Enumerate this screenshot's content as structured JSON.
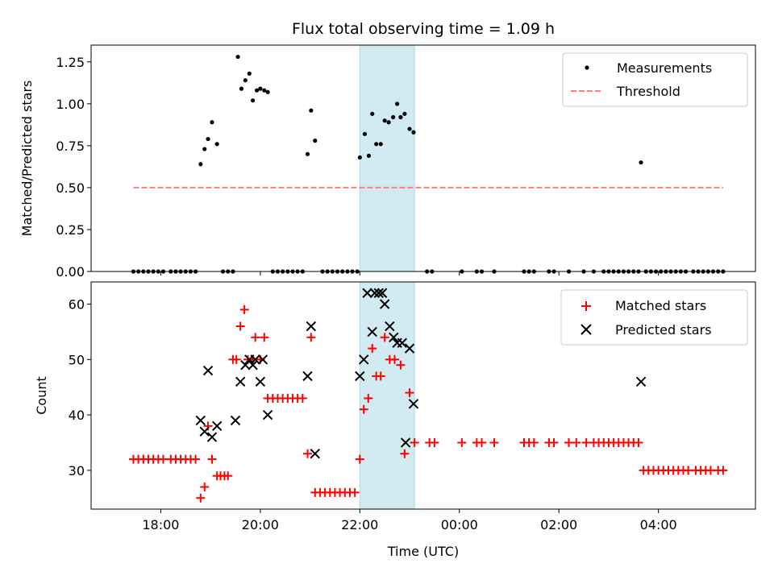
{
  "title": "Flux total observing time = 1.09 h",
  "colors": {
    "measurement": "#000000",
    "threshold": "#ff7f7f",
    "matched": "#ff0000",
    "predicted": "#000000",
    "span": "#add8e6"
  },
  "chart_data": [
    {
      "type": "scatter",
      "ylabel": "Matched/Predicted stars",
      "xlim": [
        16.6,
        29.95
      ],
      "ylim": [
        0,
        1.35
      ],
      "yticks": [
        0.0,
        0.25,
        0.5,
        0.75,
        1.0,
        1.25
      ],
      "ytick_labels": [
        "0.00",
        "0.25",
        "0.50",
        "0.75",
        "1.00",
        "1.25"
      ],
      "highlight_span": [
        22.0,
        23.1
      ],
      "legend": [
        "Measurements",
        "Threshold"
      ],
      "threshold": {
        "name": "Threshold",
        "value": 0.5,
        "x": [
          17.45,
          29.3
        ]
      },
      "series": [
        {
          "name": "Measurements",
          "marker": "dot",
          "points": [
            [
              17.45,
              0
            ],
            [
              17.55,
              0
            ],
            [
              17.65,
              0
            ],
            [
              17.75,
              0
            ],
            [
              17.85,
              0
            ],
            [
              17.95,
              0
            ],
            [
              18.05,
              0
            ],
            [
              18.2,
              0
            ],
            [
              18.3,
              0
            ],
            [
              18.4,
              0
            ],
            [
              18.5,
              0
            ],
            [
              18.6,
              0
            ],
            [
              18.7,
              0
            ],
            [
              18.8,
              0.64
            ],
            [
              18.88,
              0.73
            ],
            [
              18.95,
              0.79
            ],
            [
              19.03,
              0.89
            ],
            [
              19.13,
              0.76
            ],
            [
              19.25,
              0
            ],
            [
              19.35,
              0
            ],
            [
              19.45,
              0
            ],
            [
              19.55,
              1.28
            ],
            [
              19.62,
              1.09
            ],
            [
              19.7,
              1.14
            ],
            [
              19.78,
              1.18
            ],
            [
              19.85,
              1.02
            ],
            [
              19.93,
              1.08
            ],
            [
              20.0,
              1.09
            ],
            [
              20.08,
              1.08
            ],
            [
              20.15,
              1.07
            ],
            [
              20.25,
              0
            ],
            [
              20.35,
              0
            ],
            [
              20.45,
              0
            ],
            [
              20.55,
              0
            ],
            [
              20.65,
              0
            ],
            [
              20.75,
              0
            ],
            [
              20.85,
              0
            ],
            [
              20.95,
              0.7
            ],
            [
              21.02,
              0.96
            ],
            [
              21.1,
              0.78
            ],
            [
              21.25,
              0
            ],
            [
              21.35,
              0
            ],
            [
              21.45,
              0
            ],
            [
              21.55,
              0
            ],
            [
              21.65,
              0
            ],
            [
              21.75,
              0
            ],
            [
              21.85,
              0
            ],
            [
              21.95,
              0
            ],
            [
              22.0,
              0.68
            ],
            [
              22.1,
              0.82
            ],
            [
              22.18,
              0.69
            ],
            [
              22.25,
              0.94
            ],
            [
              22.33,
              0.76
            ],
            [
              22.42,
              0.76
            ],
            [
              22.5,
              0.9
            ],
            [
              22.58,
              0.89
            ],
            [
              22.67,
              0.92
            ],
            [
              22.75,
              1.0
            ],
            [
              22.82,
              0.92
            ],
            [
              22.9,
              0.94
            ],
            [
              23.0,
              0.85
            ],
            [
              23.08,
              0.83
            ],
            [
              23.35,
              0
            ],
            [
              23.45,
              0
            ],
            [
              24.05,
              0
            ],
            [
              24.35,
              0
            ],
            [
              24.45,
              0
            ],
            [
              24.7,
              0
            ],
            [
              25.3,
              0
            ],
            [
              25.4,
              0
            ],
            [
              25.5,
              0
            ],
            [
              25.8,
              0
            ],
            [
              25.9,
              0
            ],
            [
              26.2,
              0
            ],
            [
              26.5,
              0
            ],
            [
              26.7,
              0
            ],
            [
              26.9,
              0
            ],
            [
              27.0,
              0
            ],
            [
              27.1,
              0
            ],
            [
              27.2,
              0
            ],
            [
              27.3,
              0
            ],
            [
              27.4,
              0
            ],
            [
              27.5,
              0
            ],
            [
              27.6,
              0
            ],
            [
              27.65,
              0.65
            ],
            [
              27.75,
              0
            ],
            [
              27.85,
              0
            ],
            [
              27.95,
              0
            ],
            [
              28.05,
              0
            ],
            [
              28.15,
              0
            ],
            [
              28.25,
              0
            ],
            [
              28.35,
              0
            ],
            [
              28.45,
              0
            ],
            [
              28.55,
              0
            ],
            [
              28.7,
              0
            ],
            [
              28.8,
              0
            ],
            [
              28.9,
              0
            ],
            [
              29.0,
              0
            ],
            [
              29.1,
              0
            ],
            [
              29.2,
              0
            ],
            [
              29.3,
              0
            ]
          ]
        }
      ]
    },
    {
      "type": "scatter",
      "ylabel": "Count",
      "xlabel": "Time (UTC)",
      "xlim": [
        16.6,
        29.95
      ],
      "ylim": [
        23,
        64
      ],
      "yticks": [
        30,
        40,
        50,
        60
      ],
      "ytick_labels": [
        "30",
        "40",
        "50",
        "60"
      ],
      "xticks": [
        18,
        20,
        22,
        24,
        26,
        28
      ],
      "xtick_labels": [
        "18:00",
        "20:00",
        "22:00",
        "00:00",
        "02:00",
        "04:00"
      ],
      "highlight_span": [
        22.0,
        23.1
      ],
      "legend": [
        "Matched stars",
        "Predicted stars"
      ],
      "series": [
        {
          "name": "Matched stars",
          "marker": "plus",
          "points": [
            [
              17.45,
              32
            ],
            [
              17.55,
              32
            ],
            [
              17.65,
              32
            ],
            [
              17.75,
              32
            ],
            [
              17.85,
              32
            ],
            [
              17.95,
              32
            ],
            [
              18.05,
              32
            ],
            [
              18.2,
              32
            ],
            [
              18.3,
              32
            ],
            [
              18.4,
              32
            ],
            [
              18.5,
              32
            ],
            [
              18.6,
              32
            ],
            [
              18.7,
              32
            ],
            [
              18.8,
              25
            ],
            [
              18.88,
              27
            ],
            [
              18.95,
              38
            ],
            [
              19.03,
              32
            ],
            [
              19.13,
              29
            ],
            [
              19.2,
              29
            ],
            [
              19.28,
              29
            ],
            [
              19.35,
              29
            ],
            [
              19.45,
              50
            ],
            [
              19.52,
              50
            ],
            [
              19.6,
              56
            ],
            [
              19.68,
              59
            ],
            [
              19.75,
              50
            ],
            [
              19.85,
              50
            ],
            [
              19.9,
              54
            ],
            [
              20.0,
              50
            ],
            [
              20.08,
              54
            ],
            [
              20.15,
              43
            ],
            [
              20.25,
              43
            ],
            [
              20.35,
              43
            ],
            [
              20.45,
              43
            ],
            [
              20.55,
              43
            ],
            [
              20.65,
              43
            ],
            [
              20.75,
              43
            ],
            [
              20.85,
              43
            ],
            [
              20.95,
              33
            ],
            [
              21.02,
              54
            ],
            [
              21.1,
              26
            ],
            [
              21.2,
              26
            ],
            [
              21.3,
              26
            ],
            [
              21.4,
              26
            ],
            [
              21.5,
              26
            ],
            [
              21.6,
              26
            ],
            [
              21.7,
              26
            ],
            [
              21.8,
              26
            ],
            [
              21.9,
              26
            ],
            [
              22.0,
              32
            ],
            [
              22.08,
              41
            ],
            [
              22.17,
              43
            ],
            [
              22.25,
              52
            ],
            [
              22.33,
              47
            ],
            [
              22.42,
              47
            ],
            [
              22.5,
              54
            ],
            [
              22.6,
              50
            ],
            [
              22.7,
              50
            ],
            [
              22.82,
              49
            ],
            [
              22.9,
              33
            ],
            [
              23.0,
              44
            ],
            [
              23.1,
              35
            ],
            [
              23.4,
              35
            ],
            [
              23.5,
              35
            ],
            [
              24.05,
              35
            ],
            [
              24.35,
              35
            ],
            [
              24.45,
              35
            ],
            [
              24.7,
              35
            ],
            [
              25.3,
              35
            ],
            [
              25.4,
              35
            ],
            [
              25.5,
              35
            ],
            [
              25.8,
              35
            ],
            [
              25.9,
              35
            ],
            [
              26.2,
              35
            ],
            [
              26.35,
              35
            ],
            [
              26.55,
              35
            ],
            [
              26.7,
              35
            ],
            [
              26.8,
              35
            ],
            [
              26.9,
              35
            ],
            [
              27.0,
              35
            ],
            [
              27.1,
              35
            ],
            [
              27.2,
              35
            ],
            [
              27.3,
              35
            ],
            [
              27.4,
              35
            ],
            [
              27.5,
              35
            ],
            [
              27.6,
              35
            ],
            [
              27.7,
              30
            ],
            [
              27.8,
              30
            ],
            [
              27.9,
              30
            ],
            [
              28.0,
              30
            ],
            [
              28.1,
              30
            ],
            [
              28.2,
              30
            ],
            [
              28.3,
              30
            ],
            [
              28.4,
              30
            ],
            [
              28.5,
              30
            ],
            [
              28.6,
              30
            ],
            [
              28.75,
              30
            ],
            [
              28.85,
              30
            ],
            [
              28.95,
              30
            ],
            [
              29.05,
              30
            ],
            [
              29.2,
              30
            ],
            [
              29.3,
              30
            ]
          ]
        },
        {
          "name": "Predicted stars",
          "marker": "x",
          "points": [
            [
              18.8,
              39
            ],
            [
              18.88,
              37
            ],
            [
              18.95,
              48
            ],
            [
              19.03,
              36
            ],
            [
              19.13,
              38
            ],
            [
              19.5,
              39
            ],
            [
              19.6,
              46
            ],
            [
              19.7,
              49
            ],
            [
              19.78,
              50
            ],
            [
              19.85,
              49
            ],
            [
              19.9,
              50
            ],
            [
              20.0,
              46
            ],
            [
              20.05,
              50
            ],
            [
              20.15,
              40
            ],
            [
              20.95,
              47
            ],
            [
              21.02,
              56
            ],
            [
              21.1,
              33
            ],
            [
              22.0,
              47
            ],
            [
              22.08,
              50
            ],
            [
              22.15,
              62
            ],
            [
              22.25,
              55
            ],
            [
              22.3,
              62
            ],
            [
              22.38,
              62
            ],
            [
              22.45,
              62
            ],
            [
              22.5,
              60
            ],
            [
              22.6,
              56
            ],
            [
              22.68,
              54
            ],
            [
              22.75,
              53
            ],
            [
              22.85,
              53
            ],
            [
              22.92,
              35
            ],
            [
              23.0,
              52
            ],
            [
              23.08,
              42
            ],
            [
              27.65,
              46
            ]
          ]
        }
      ]
    }
  ]
}
